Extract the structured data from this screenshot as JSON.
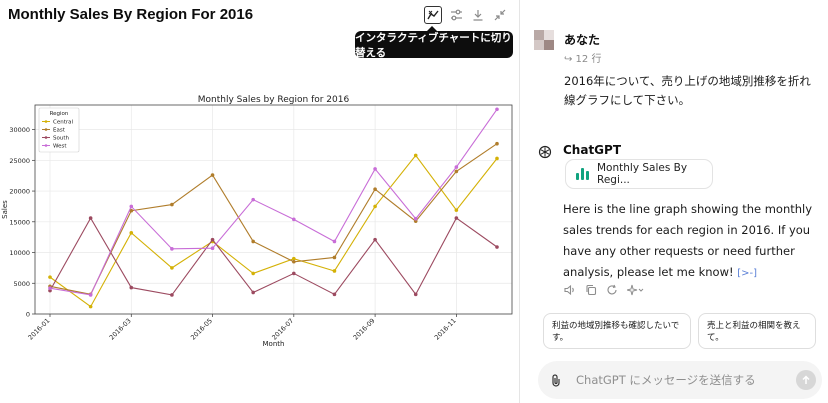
{
  "panel": {
    "title": "Monthly Sales By Region For 2016",
    "tooltip": "インタラクティブチャートに切り替える",
    "toolbar_icons": [
      "interactive-chart-icon",
      "sliders-icon",
      "download-icon",
      "collapse-icon"
    ]
  },
  "chat": {
    "user_name": "あなた",
    "line_ref": "↪ 12 行",
    "user_message": "2016年について、売り上げの地域別推移を折れ線グラフにして下さい。",
    "assistant_name": "ChatGPT",
    "chart_chip_label": "Monthly Sales By Regi...",
    "reply": "Here is the line graph showing the monthly sales trends for each region in 2016. If you have any other requests or need further analysis, please let me know!",
    "reply_cite": "[>-]",
    "action_icons": [
      "speaker-icon",
      "copy-icon",
      "regenerate-icon",
      "sparkle-icon"
    ],
    "suggestions": [
      "利益の地域別推移も確認したいです。",
      "売上と利益の相関を教えて。"
    ],
    "composer_placeholder": "ChatGPT にメッセージを送信する"
  },
  "colors": {
    "Central": "#d4b106",
    "East": "#b07d2b",
    "South": "#9c4a60",
    "West": "#c86dd7"
  },
  "chart_data": {
    "type": "line",
    "title": "Monthly Sales by Region for 2016",
    "xlabel": "Month",
    "ylabel": "Sales",
    "x": [
      "2016-01",
      "2016-02",
      "2016-03",
      "2016-04",
      "2016-05",
      "2016-06",
      "2016-07",
      "2016-08",
      "2016-09",
      "2016-10",
      "2016-11",
      "2016-12"
    ],
    "x_ticks": [
      "2016-01",
      "2016-03",
      "2016-05",
      "2016-07",
      "2016-09",
      "2016-11"
    ],
    "y_ticks": [
      0,
      5000,
      10000,
      15000,
      20000,
      25000,
      30000
    ],
    "ylim": [
      0,
      34000
    ],
    "legend_title": "Region",
    "legend_position": "top-left",
    "grid": true,
    "series": [
      {
        "name": "Central",
        "values": [
          6000,
          1200,
          13200,
          7500,
          11800,
          6600,
          9000,
          7000,
          17500,
          25800,
          16900,
          25300
        ]
      },
      {
        "name": "East",
        "values": [
          4500,
          3200,
          16800,
          17800,
          22600,
          11800,
          8500,
          9200,
          20300,
          15100,
          23200,
          27700
        ]
      },
      {
        "name": "South",
        "values": [
          3800,
          15600,
          4300,
          3100,
          12100,
          3500,
          6600,
          3200,
          12100,
          3200,
          15600,
          10900
        ]
      },
      {
        "name": "West",
        "values": [
          4200,
          3100,
          17500,
          10600,
          10700,
          18600,
          15400,
          11800,
          23600,
          15500,
          23900,
          33300
        ]
      }
    ]
  }
}
